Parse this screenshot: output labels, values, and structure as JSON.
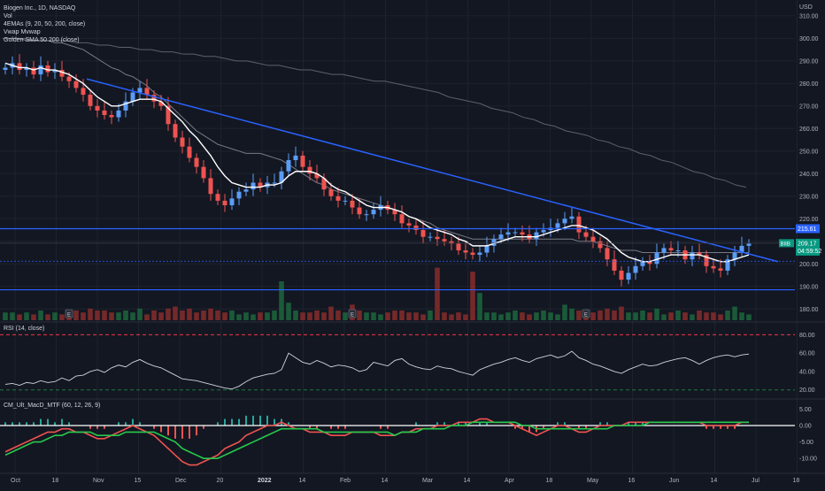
{
  "legend": {
    "title": "Biogen Inc., 1D, NASDAQ",
    "lines": [
      "Vol",
      "4EMAs (9, 20, 50, 200, close)",
      "Vwap Mvwap",
      "Golden SMA 50 200 (close)"
    ]
  },
  "currency": "USD",
  "rsi_label": "RSI (14, close)",
  "macd_label": "CM_Ult_MacD_MTF (60, 12, 26, 9)",
  "ticker_badge": "BIIB",
  "last_price": "209.17",
  "countdown": "04:59:52",
  "hline_value": "215.61",
  "colors": {
    "background": "#131722",
    "up": "#26a69a",
    "down": "#ef5350",
    "up_candle": "#5b9cf6",
    "trendline": "#2962ff",
    "level": "#2962ff",
    "ema_fast": "#ffffff",
    "rsi_bands": "#f23645",
    "macd_fast": "#ef5350",
    "macd_slow": "#26c94b"
  },
  "chart_data": [
    {
      "type": "candlestick",
      "pane": "price",
      "ylim": [
        175,
        317
      ],
      "y_ticks": [
        "180.00",
        "190.00",
        "200.00",
        "210.00",
        "220.00",
        "230.00",
        "240.00",
        "250.00",
        "260.00",
        "270.00",
        "280.00",
        "290.00",
        "300.00",
        "310.00"
      ],
      "x_ticks": [
        "Oct",
        "18",
        "Nov",
        "15",
        "Dec",
        "20",
        "2022",
        "14",
        "Feb",
        "14",
        "Mar",
        "14",
        "Apr",
        "18",
        "May",
        "16",
        "Jun",
        "14",
        "Jul",
        "18"
      ],
      "close_series": [
        287,
        289,
        286,
        287,
        284,
        288,
        285,
        286,
        283,
        281,
        278,
        275,
        270,
        268,
        266,
        265,
        268,
        272,
        276,
        278,
        275,
        272,
        270,
        262,
        256,
        252,
        247,
        243,
        238,
        231,
        228,
        226,
        229,
        232,
        233,
        236,
        234,
        236,
        236,
        241,
        246,
        248,
        243,
        240,
        238,
        233,
        230,
        228,
        228,
        225,
        222,
        222,
        224,
        226,
        224,
        222,
        218,
        217,
        215,
        212,
        212,
        211,
        210,
        209,
        206,
        205,
        204,
        205,
        208,
        211,
        213,
        214,
        214,
        213,
        211,
        214,
        215,
        216,
        218,
        220,
        221,
        214,
        212,
        210,
        207,
        202,
        197,
        193,
        196,
        199,
        201,
        200,
        205,
        207,
        206,
        206,
        202,
        205,
        204,
        199,
        198,
        197,
        202,
        205,
        208,
        209
      ],
      "ema": {
        "name": "EMA 9",
        "values": [
          289,
          288,
          287,
          287,
          286,
          287,
          286,
          286,
          285,
          284,
          282,
          280,
          277,
          274,
          272,
          270,
          270,
          271,
          272,
          273,
          273,
          273,
          272,
          269,
          266,
          263,
          259,
          256,
          252,
          248,
          243,
          239,
          236,
          235,
          234,
          234,
          234,
          235,
          235,
          236,
          239,
          241,
          241,
          241,
          240,
          238,
          235,
          233,
          232,
          230,
          228,
          226,
          225,
          225,
          225,
          224,
          223,
          221,
          220,
          218,
          216,
          215,
          214,
          213,
          211,
          210,
          208,
          208,
          208,
          209,
          210,
          211,
          212,
          212,
          212,
          212,
          213,
          214,
          215,
          216,
          217,
          217,
          216,
          215,
          213,
          211,
          208,
          205,
          203,
          202,
          201,
          201,
          202,
          203,
          204,
          204,
          204,
          204,
          204,
          203,
          202,
          201,
          201,
          202,
          203,
          204
        ]
      },
      "ema_slow": [
        300,
        300,
        300,
        299,
        299,
        299,
        299,
        298,
        298,
        297,
        296,
        295,
        293,
        291,
        289,
        287,
        286,
        284,
        283,
        281,
        279,
        276,
        274,
        271,
        268,
        265,
        262,
        259,
        257,
        255,
        253,
        252,
        251,
        250,
        249,
        249,
        249,
        248,
        247,
        246,
        244,
        242,
        240,
        238,
        236,
        235,
        233,
        232,
        231,
        230,
        229,
        228,
        227,
        226,
        225,
        224,
        223,
        221,
        220,
        219,
        218,
        216,
        215,
        214,
        213,
        212,
        211,
        211,
        211,
        211,
        211,
        211,
        211,
        211,
        211,
        211,
        211,
        211,
        211,
        211,
        211,
        210,
        210,
        210,
        209,
        208,
        207,
        206,
        206,
        206,
        205,
        205,
        205,
        205,
        205,
        205,
        205,
        205,
        205,
        205,
        205,
        205,
        205,
        205,
        205,
        205
      ],
      "sma200": [
        300,
        300,
        300,
        299,
        299,
        299,
        299,
        298,
        298,
        297,
        297,
        296,
        296,
        295,
        295,
        294,
        294,
        293,
        293,
        292,
        292,
        291,
        290,
        290,
        289,
        288,
        288,
        287,
        286,
        286,
        285,
        284,
        284,
        283,
        282,
        281,
        281,
        280,
        279,
        278,
        277,
        276,
        274,
        273,
        272,
        271,
        269,
        268,
        267,
        265,
        264,
        262,
        261,
        259,
        258,
        257,
        255,
        254,
        252,
        251,
        249,
        248,
        246,
        245,
        243,
        241,
        240,
        238,
        237,
        235,
        234
      ],
      "trendline": {
        "from": {
          "index": 11,
          "price": 282
        },
        "to": {
          "index": 106,
          "price": 201
        }
      },
      "horizontal_levels": [
        215.61,
        188.5
      ],
      "last_close": 209.17,
      "annotations": [
        "E",
        "E",
        "E"
      ]
    },
    {
      "type": "bar",
      "pane": "volume",
      "values": [
        4,
        4,
        3,
        4,
        3,
        5,
        3,
        4,
        3,
        4,
        5,
        4,
        6,
        5,
        5,
        4,
        4,
        5,
        4,
        6,
        3,
        5,
        4,
        6,
        7,
        5,
        6,
        4,
        5,
        6,
        5,
        4,
        5,
        3,
        4,
        3,
        4,
        4,
        5,
        20,
        9,
        5,
        4,
        4,
        5,
        4,
        7,
        5,
        4,
        8,
        5,
        4,
        4,
        3,
        4,
        5,
        5,
        4,
        4,
        3,
        5,
        4,
        4,
        3,
        4,
        3,
        4,
        5,
        4,
        4,
        3,
        4,
        5,
        4,
        3,
        4,
        5,
        4,
        3,
        8,
        6,
        5,
        4,
        4,
        5,
        6,
        5,
        7,
        4,
        4,
        5,
        4,
        6,
        3,
        4,
        5,
        4,
        3,
        5,
        4,
        4,
        3,
        5,
        7,
        4,
        3
      ],
      "spikes": [
        {
          "index": 61,
          "value": 27
        },
        {
          "index": 66,
          "value": 25
        },
        {
          "index": 67,
          "value": 14
        }
      ]
    },
    {
      "type": "line",
      "pane": "rsi",
      "ylim": [
        12,
        90
      ],
      "y_ticks": [
        "80.00",
        "60.00",
        "40.00",
        "20.00"
      ],
      "bands": [
        80,
        20
      ],
      "values": [
        26,
        27,
        25,
        28,
        27,
        30,
        28,
        29,
        33,
        30,
        35,
        36,
        40,
        42,
        39,
        44,
        47,
        45,
        50,
        53,
        49,
        46,
        44,
        40,
        36,
        32,
        31,
        30,
        28,
        26,
        24,
        22,
        21,
        24,
        29,
        33,
        35,
        37,
        38,
        42,
        60,
        55,
        50,
        48,
        52,
        49,
        45,
        47,
        46,
        44,
        40,
        42,
        50,
        48,
        46,
        52,
        54,
        48,
        45,
        43,
        42,
        46,
        44,
        43,
        40,
        38,
        36,
        42,
        45,
        48,
        50,
        53,
        55,
        52,
        50,
        54,
        56,
        58,
        55,
        57,
        62,
        55,
        52,
        48,
        46,
        43,
        40,
        38,
        42,
        45,
        48,
        46,
        47,
        50,
        52,
        54,
        55,
        52,
        48,
        52,
        55,
        57,
        58,
        56,
        58,
        59
      ]
    },
    {
      "type": "line",
      "pane": "macd",
      "ylim": [
        -14,
        7
      ],
      "y_ticks": [
        "5.00",
        "0.00",
        "-5.00",
        "-10.00"
      ],
      "series": [
        {
          "name": "MACD",
          "values": [
            -8,
            -7,
            -6,
            -5,
            -4,
            -3,
            -2,
            -2,
            -1,
            -1,
            -2,
            -2,
            -3,
            -4,
            -4,
            -3,
            -2,
            -1,
            0,
            -1,
            -2,
            -3,
            -5,
            -7,
            -9,
            -11,
            -12,
            -12,
            -11,
            -10,
            -9,
            -7,
            -6,
            -5,
            -3,
            -2,
            -1,
            0,
            0,
            1,
            0,
            -1,
            -1,
            -2,
            -2,
            -2,
            -3,
            -3,
            -3,
            -2,
            -2,
            -2,
            -2,
            -3,
            -3,
            -3,
            -2,
            -2,
            -1,
            -1,
            -1,
            0,
            0,
            0,
            1,
            1,
            1,
            2,
            2,
            1,
            1,
            1,
            0,
            -1,
            -2,
            -3,
            -2,
            -1,
            0,
            0,
            -1,
            -2,
            -2,
            -1,
            0,
            0,
            0,
            0,
            1,
            1,
            1,
            1,
            1,
            1,
            1,
            1,
            1,
            1,
            1,
            0,
            0,
            0,
            0,
            0,
            1,
            1
          ]
        },
        {
          "name": "Signal",
          "values": [
            -9,
            -8,
            -7,
            -6,
            -5,
            -5,
            -4,
            -3,
            -3,
            -2,
            -2,
            -2,
            -2,
            -3,
            -3,
            -3,
            -3,
            -2,
            -2,
            -2,
            -2,
            -2,
            -3,
            -4,
            -5,
            -7,
            -8,
            -9,
            -10,
            -10,
            -10,
            -9,
            -8,
            -7,
            -6,
            -5,
            -4,
            -3,
            -2,
            -1,
            -1,
            -1,
            -1,
            -1,
            -1,
            -2,
            -2,
            -2,
            -2,
            -2,
            -2,
            -2,
            -2,
            -2,
            -2,
            -3,
            -2,
            -2,
            -2,
            -1,
            -1,
            -1,
            -1,
            0,
            0,
            0,
            1,
            1,
            1,
            1,
            1,
            1,
            1,
            0,
            0,
            -1,
            -1,
            -1,
            -1,
            -1,
            -1,
            -1,
            -1,
            -1,
            -1,
            -1,
            0,
            0,
            0,
            0,
            0,
            1,
            1,
            1,
            1,
            1,
            1,
            1,
            1,
            1,
            1,
            1,
            1,
            1,
            1,
            1
          ]
        },
        {
          "name": "Histogram",
          "values": [
            1,
            1,
            1,
            1,
            1,
            2,
            2,
            1,
            2,
            1,
            0,
            0,
            -1,
            -1,
            -1,
            0,
            1,
            1,
            2,
            1,
            0,
            -1,
            -2,
            -3,
            -4,
            -4,
            -4,
            -3,
            -1,
            0,
            1,
            2,
            2,
            2,
            3,
            3,
            3,
            3,
            2,
            2,
            1,
            0,
            0,
            -1,
            -1,
            0,
            -1,
            -1,
            -1,
            0,
            0,
            0,
            0,
            -1,
            -1,
            0,
            0,
            0,
            1,
            0,
            0,
            1,
            1,
            0,
            1,
            1,
            0,
            1,
            1,
            0,
            0,
            0,
            -1,
            -1,
            -2,
            -2,
            -1,
            0,
            1,
            1,
            0,
            -1,
            -1,
            0,
            1,
            1,
            0,
            0,
            1,
            1,
            1,
            0,
            0,
            0,
            0,
            0,
            0,
            0,
            0,
            -1,
            -1,
            -1,
            -1,
            -1,
            0,
            0
          ]
        }
      ]
    }
  ]
}
